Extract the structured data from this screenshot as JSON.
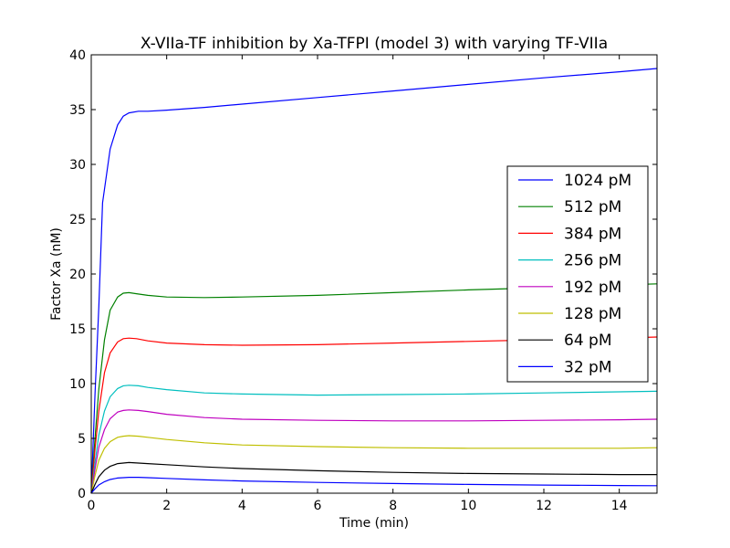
{
  "chart_data": {
    "type": "line",
    "title": "X-VIIa-TF inhibition by Xa-TFPI (model 3) with varying TF-VIIa",
    "xlabel": "Time (min)",
    "ylabel": "Factor Xa (nM)",
    "xlim": [
      0,
      15
    ],
    "ylim": [
      0,
      40
    ],
    "xticks": [
      0,
      2,
      4,
      6,
      8,
      10,
      12,
      14
    ],
    "yticks": [
      0,
      5,
      10,
      15,
      20,
      25,
      30,
      35,
      40
    ],
    "grid": false,
    "legend_position": "center-right",
    "series": [
      {
        "name": "1024 pM",
        "color": "#0000ff",
        "points": [
          [
            0,
            0
          ],
          [
            0.1,
            9
          ],
          [
            0.2,
            17
          ],
          [
            0.3,
            26.5
          ],
          [
            0.5,
            31.4
          ],
          [
            0.7,
            33.6
          ],
          [
            0.85,
            34.4
          ],
          [
            1,
            34.7
          ],
          [
            1.25,
            34.85
          ],
          [
            1.5,
            34.85
          ],
          [
            2,
            34.95
          ],
          [
            3,
            35.2
          ],
          [
            4,
            35.5
          ],
          [
            6,
            36.1
          ],
          [
            8,
            36.7
          ],
          [
            10,
            37.3
          ],
          [
            12,
            37.9
          ],
          [
            14,
            38.45
          ],
          [
            15,
            38.75
          ]
        ]
      },
      {
        "name": "512 pM",
        "color": "#008000",
        "points": [
          [
            0,
            0
          ],
          [
            0.1,
            5
          ],
          [
            0.2,
            9.5
          ],
          [
            0.35,
            14
          ],
          [
            0.5,
            16.7
          ],
          [
            0.7,
            17.9
          ],
          [
            0.85,
            18.25
          ],
          [
            1,
            18.3
          ],
          [
            1.2,
            18.2
          ],
          [
            1.5,
            18.05
          ],
          [
            2,
            17.9
          ],
          [
            3,
            17.85
          ],
          [
            4,
            17.9
          ],
          [
            6,
            18.05
          ],
          [
            8,
            18.3
          ],
          [
            10,
            18.55
          ],
          [
            12,
            18.75
          ],
          [
            14,
            19
          ],
          [
            15,
            19.1
          ]
        ]
      },
      {
        "name": "384 pM",
        "color": "#ff0000",
        "points": [
          [
            0,
            0
          ],
          [
            0.1,
            4
          ],
          [
            0.2,
            7.5
          ],
          [
            0.35,
            11
          ],
          [
            0.5,
            12.8
          ],
          [
            0.7,
            13.8
          ],
          [
            0.85,
            14.1
          ],
          [
            1,
            14.15
          ],
          [
            1.2,
            14.1
          ],
          [
            1.5,
            13.9
          ],
          [
            2,
            13.7
          ],
          [
            3,
            13.55
          ],
          [
            4,
            13.5
          ],
          [
            6,
            13.55
          ],
          [
            8,
            13.7
          ],
          [
            10,
            13.85
          ],
          [
            12,
            14
          ],
          [
            14,
            14.15
          ],
          [
            15,
            14.25
          ]
        ]
      },
      {
        "name": "256 pM",
        "color": "#00bfbf",
        "points": [
          [
            0,
            0
          ],
          [
            0.1,
            2.8
          ],
          [
            0.2,
            5.3
          ],
          [
            0.35,
            7.5
          ],
          [
            0.5,
            8.8
          ],
          [
            0.7,
            9.55
          ],
          [
            0.85,
            9.8
          ],
          [
            1,
            9.85
          ],
          [
            1.25,
            9.8
          ],
          [
            1.5,
            9.65
          ],
          [
            2,
            9.45
          ],
          [
            3,
            9.15
          ],
          [
            4,
            9.05
          ],
          [
            6,
            8.95
          ],
          [
            8,
            9
          ],
          [
            10,
            9.05
          ],
          [
            12,
            9.15
          ],
          [
            14,
            9.25
          ],
          [
            15,
            9.3
          ]
        ]
      },
      {
        "name": "192 pM",
        "color": "#bf00bf",
        "points": [
          [
            0,
            0
          ],
          [
            0.1,
            2.2
          ],
          [
            0.2,
            4.2
          ],
          [
            0.35,
            5.8
          ],
          [
            0.5,
            6.8
          ],
          [
            0.7,
            7.4
          ],
          [
            0.85,
            7.55
          ],
          [
            1,
            7.6
          ],
          [
            1.25,
            7.55
          ],
          [
            1.5,
            7.45
          ],
          [
            2,
            7.2
          ],
          [
            3,
            6.9
          ],
          [
            4,
            6.75
          ],
          [
            6,
            6.65
          ],
          [
            8,
            6.6
          ],
          [
            10,
            6.6
          ],
          [
            12,
            6.65
          ],
          [
            14,
            6.7
          ],
          [
            15,
            6.75
          ]
        ]
      },
      {
        "name": "128 pM",
        "color": "#bfbf00",
        "points": [
          [
            0,
            0
          ],
          [
            0.1,
            1.6
          ],
          [
            0.2,
            3
          ],
          [
            0.35,
            4.1
          ],
          [
            0.5,
            4.7
          ],
          [
            0.7,
            5.1
          ],
          [
            0.85,
            5.2
          ],
          [
            1,
            5.25
          ],
          [
            1.25,
            5.2
          ],
          [
            1.5,
            5.1
          ],
          [
            2,
            4.9
          ],
          [
            3,
            4.6
          ],
          [
            4,
            4.4
          ],
          [
            6,
            4.25
          ],
          [
            8,
            4.15
          ],
          [
            10,
            4.1
          ],
          [
            12,
            4.1
          ],
          [
            14,
            4.1
          ],
          [
            15,
            4.15
          ]
        ]
      },
      {
        "name": "64 pM",
        "color": "#000000",
        "points": [
          [
            0,
            0
          ],
          [
            0.1,
            0.8
          ],
          [
            0.2,
            1.5
          ],
          [
            0.35,
            2.1
          ],
          [
            0.5,
            2.45
          ],
          [
            0.7,
            2.7
          ],
          [
            0.85,
            2.75
          ],
          [
            1,
            2.8
          ],
          [
            1.25,
            2.75
          ],
          [
            1.5,
            2.7
          ],
          [
            2,
            2.6
          ],
          [
            3,
            2.4
          ],
          [
            4,
            2.25
          ],
          [
            6,
            2.05
          ],
          [
            8,
            1.9
          ],
          [
            10,
            1.8
          ],
          [
            12,
            1.75
          ],
          [
            14,
            1.7
          ],
          [
            15,
            1.7
          ]
        ]
      },
      {
        "name": "32 pM",
        "color": "#0000ff",
        "points": [
          [
            0,
            0
          ],
          [
            0.1,
            0.4
          ],
          [
            0.2,
            0.75
          ],
          [
            0.35,
            1.05
          ],
          [
            0.5,
            1.25
          ],
          [
            0.7,
            1.38
          ],
          [
            0.85,
            1.42
          ],
          [
            1,
            1.45
          ],
          [
            1.25,
            1.45
          ],
          [
            1.5,
            1.42
          ],
          [
            2,
            1.35
          ],
          [
            3,
            1.22
          ],
          [
            4,
            1.12
          ],
          [
            6,
            0.98
          ],
          [
            8,
            0.88
          ],
          [
            10,
            0.8
          ],
          [
            12,
            0.74
          ],
          [
            14,
            0.7
          ],
          [
            15,
            0.68
          ]
        ]
      }
    ]
  }
}
